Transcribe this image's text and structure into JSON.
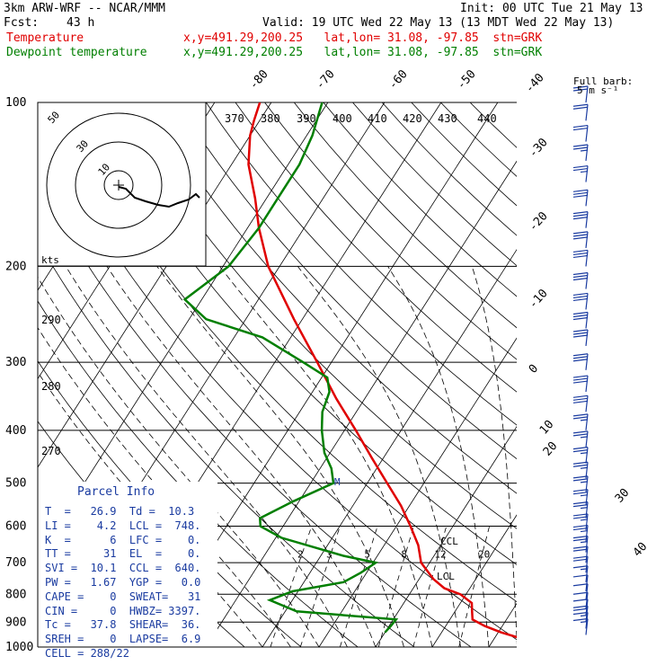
{
  "header": {
    "model": "3km ARW-WRF -- NCAR/MMM",
    "init": "Init: 00 UTC Tue 21 May 13",
    "fcst_label": "Fcst:",
    "fcst_hours": "43 h",
    "valid": "Valid: 19 UTC Wed 22 May 13 (13 MDT Wed 22 May 13)",
    "temp_label": "Temperature",
    "temp_info": "x,y=491.29,200.25   lat,lon= 31.08, -97.85  stn=GRK",
    "dew_label": "Dewpoint temperature",
    "dew_info": "x,y=491.29,200.25   lat,lon= 31.08, -97.85  stn=GRK",
    "barb_title": "Full barb:",
    "barb_unit": "5 m s⁻¹"
  },
  "colors": {
    "temperature": "#e00000",
    "dewpoint": "#007f00",
    "wind_barbs": "#1a3ba0",
    "hodograph": "#000000"
  },
  "chart_data": {
    "type": "line",
    "diagram": "skew-T log-p",
    "pressure_levels": [
      100,
      200,
      300,
      400,
      500,
      600,
      700,
      800,
      900,
      1000
    ],
    "y_axis_range_hPa": [
      1000,
      100
    ],
    "y_scale": "log",
    "isotherm_labels": [
      "-80",
      "-70",
      "-60",
      "-50",
      "-40",
      "-30",
      "-20",
      "-10",
      "0",
      "10",
      "20",
      "30",
      "40"
    ],
    "theta_labels_top": [
      "370",
      "380",
      "390",
      "400",
      "410",
      "420",
      "430",
      "440"
    ],
    "theta_labels_left": [
      "290",
      "280",
      "270"
    ],
    "mixing_ratio_labels": [
      "2",
      "3",
      "5",
      "8",
      "12",
      "20"
    ],
    "series": [
      {
        "name": "Temperature",
        "pressure_hPa": [
          960,
          940,
          915,
          890,
          860,
          830,
          800,
          780,
          750,
          700,
          650,
          600,
          550,
          500,
          450,
          400,
          350,
          300,
          250,
          200,
          170,
          150,
          130,
          115,
          108,
          100
        ],
        "temp_C": [
          34,
          30.5,
          26.9,
          24,
          23,
          22,
          19,
          15.5,
          12.5,
          8.5,
          6,
          2.5,
          -1.5,
          -6.5,
          -12,
          -18,
          -25,
          -32.5,
          -41.5,
          -52,
          -58,
          -62,
          -67,
          -70,
          -71,
          -72
        ]
      },
      {
        "name": "Dewpoint temperature",
        "pressure_hPa": [
          940,
          915,
          890,
          860,
          820,
          790,
          760,
          730,
          700,
          680,
          630,
          600,
          580,
          540,
          500,
          470,
          440,
          400,
          370,
          340,
          320,
          300,
          270,
          250,
          230,
          200,
          170,
          150,
          130,
          115,
          100
        ],
        "dewpoint_C": [
          10,
          10.3,
          10.5,
          -8,
          -14,
          -11,
          -3,
          -1,
          0.5,
          -6,
          -19,
          -24,
          -25,
          -21,
          -16,
          -18,
          -21,
          -24,
          -26,
          -27,
          -29,
          -35,
          -45,
          -57,
          -63,
          -59,
          -58,
          -58,
          -58,
          -59,
          -61
        ]
      }
    ],
    "wind_profile": {
      "units": "m/s",
      "full_barb_ms": 5,
      "pressure_hPa": [
        950,
        925,
        900,
        875,
        850,
        820,
        790,
        760,
        730,
        700,
        670,
        640,
        610,
        580,
        550,
        520,
        490,
        460,
        430,
        400,
        370,
        340,
        310,
        280,
        260,
        240,
        220,
        200,
        185,
        170,
        155,
        140,
        128,
        118,
        108,
        100
      ],
      "speed_ms": [
        16,
        17,
        18,
        12,
        10,
        10,
        12,
        15,
        18,
        20,
        25,
        25,
        26,
        25,
        25,
        25,
        25,
        25,
        25,
        25,
        30,
        30,
        30,
        30,
        30,
        30,
        30,
        30,
        30,
        30,
        30,
        25,
        25,
        20,
        20,
        20
      ]
    },
    "hodograph": {
      "ring_labels": [
        "10",
        "30",
        "50"
      ],
      "units": "kts"
    },
    "annotations": [
      "CCL",
      "LCL",
      "M"
    ]
  },
  "parcel": {
    "title": "Parcel Info",
    "rows": [
      "T  =   26.9  Td =  10.3",
      "LI =    4.2  LCL =  748.",
      "K  =      6  LFC =    0.",
      "TT =     31  EL  =    0.",
      "SVI =  10.1  CCL =  640.",
      "PW =   1.67  YGP =   0.0",
      "CAPE =    0  SWEAT=   31",
      "CIN =     0  HWBZ= 3397.",
      "Tc =   37.8  SHEAR=  36.",
      "SREH =    0  LAPSE=  6.9",
      "CELL = 288/22"
    ]
  }
}
